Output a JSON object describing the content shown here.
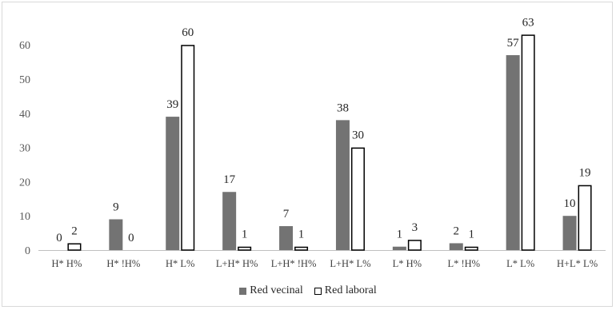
{
  "chart_data": {
    "type": "bar",
    "categories": [
      "H* H%",
      "H* !H%",
      "H* L%",
      "L+H* H%",
      "L+H* !H%",
      "L+H* L%",
      "L* H%",
      "L* !H%",
      "L* L%",
      "H+L* L%"
    ],
    "series": [
      {
        "name": "Red vecinal",
        "values": [
          0,
          9,
          39,
          17,
          7,
          38,
          1,
          2,
          57,
          10
        ],
        "color": "#737373",
        "style": "filled"
      },
      {
        "name": "Red laboral",
        "values": [
          2,
          0,
          60,
          1,
          1,
          30,
          3,
          1,
          63,
          19
        ],
        "color": "#ffffff",
        "border": "#000000",
        "style": "outlined"
      }
    ],
    "y_ticks": [
      "0",
      "10",
      "20",
      "30",
      "40",
      "50",
      "60"
    ],
    "ylim": [
      0,
      70
    ],
    "grid": false,
    "legend_position": "bottom"
  }
}
